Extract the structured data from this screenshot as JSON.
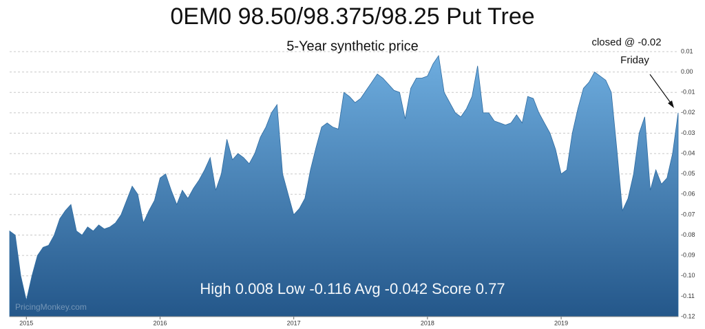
{
  "chart_data": {
    "type": "area",
    "title": "0EM0 98.50/98.375/98.25 Put Tree",
    "subtitle": "5-Year synthetic price",
    "annotations": [
      "closed @ -0.02",
      "Friday"
    ],
    "stats": "High 0.008 Low -0.116 Avg -0.042 Score 0.77",
    "watermark": "PricingMonkey.com",
    "color": "#2c6aa0",
    "gradient": [
      "#6eaddf",
      "#24578a"
    ],
    "grid": true,
    "ylim": [
      -0.12,
      0.01
    ],
    "yticks": [
      0.01,
      {
        "value": 0,
        "label": "0.00"
      },
      -0.01,
      -0.02,
      -0.03,
      -0.04,
      -0.05,
      -0.06,
      -0.07,
      -0.08,
      -0.09,
      {
        "value": -0.1,
        "label": "-0.10"
      },
      -0.11,
      -0.12
    ],
    "categories": [
      null,
      null,
      null,
      "2015",
      null,
      null,
      null,
      null,
      null,
      null,
      null,
      null,
      null,
      null,
      null,
      null,
      null,
      null,
      null,
      null,
      null,
      null,
      null,
      null,
      null,
      null,
      null,
      "2016",
      null,
      null,
      null,
      null,
      null,
      null,
      null,
      null,
      null,
      null,
      null,
      null,
      null,
      null,
      null,
      null,
      null,
      null,
      null,
      null,
      null,
      null,
      null,
      "2017",
      null,
      null,
      null,
      null,
      null,
      null,
      null,
      null,
      null,
      null,
      null,
      null,
      null,
      null,
      null,
      null,
      null,
      null,
      null,
      null,
      null,
      null,
      null,
      "2018",
      null,
      null,
      null,
      null,
      null,
      null,
      null,
      null,
      null,
      null,
      null,
      null,
      null,
      null,
      null,
      null,
      null,
      null,
      null,
      null,
      null,
      null,
      null,
      "2019",
      null,
      null,
      null,
      null,
      null,
      null,
      null,
      null,
      null,
      null,
      null,
      null,
      null,
      null,
      null,
      null,
      null,
      null,
      null,
      null,
      null
    ],
    "values": [
      -0.078,
      -0.08,
      -0.1,
      -0.112,
      -0.1,
      -0.09,
      -0.086,
      -0.085,
      -0.08,
      -0.072,
      -0.068,
      -0.065,
      -0.078,
      -0.08,
      -0.076,
      -0.078,
      -0.075,
      -0.077,
      -0.076,
      -0.074,
      -0.07,
      -0.063,
      -0.056,
      -0.06,
      -0.074,
      -0.068,
      -0.063,
      -0.052,
      -0.05,
      -0.058,
      -0.065,
      -0.058,
      -0.062,
      -0.057,
      -0.053,
      -0.048,
      -0.042,
      -0.058,
      -0.05,
      -0.033,
      -0.043,
      -0.04,
      -0.042,
      -0.045,
      -0.04,
      -0.032,
      -0.027,
      -0.02,
      -0.016,
      -0.05,
      -0.06,
      -0.07,
      -0.067,
      -0.062,
      -0.048,
      -0.037,
      -0.027,
      -0.025,
      -0.027,
      -0.028,
      -0.01,
      -0.012,
      -0.015,
      -0.013,
      -0.009,
      -0.005,
      -0.001,
      -0.003,
      -0.006,
      -0.009,
      -0.01,
      -0.023,
      -0.008,
      -0.003,
      -0.003,
      -0.002,
      0.004,
      0.008,
      -0.01,
      -0.015,
      -0.02,
      -0.022,
      -0.018,
      -0.012,
      0.003,
      -0.02,
      -0.02,
      -0.024,
      -0.025,
      -0.026,
      -0.025,
      -0.021,
      -0.025,
      -0.012,
      -0.013,
      -0.02,
      -0.025,
      -0.03,
      -0.038,
      -0.05,
      -0.048,
      -0.03,
      -0.018,
      -0.008,
      -0.005,
      0,
      -0.002,
      -0.004,
      -0.01,
      -0.038,
      -0.068,
      -0.062,
      -0.05,
      -0.03,
      -0.022,
      -0.058,
      -0.048,
      -0.055,
      -0.052,
      -0.04,
      -0.02
    ]
  }
}
